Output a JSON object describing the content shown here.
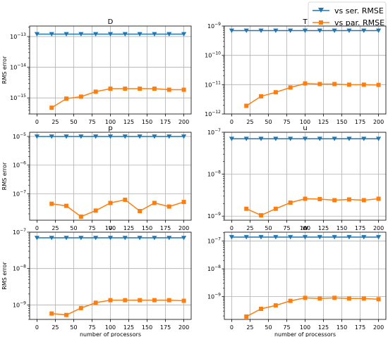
{
  "legend": {
    "placement": "top-right",
    "entries": [
      {
        "label": "vs ser. RMSE",
        "color": "#1f77b4",
        "marker": "triangle-down"
      },
      {
        "label": "vs par. RMSE",
        "color": "#ff7f0e",
        "marker": "square"
      }
    ]
  },
  "chart_data": [
    {
      "type": "line",
      "yscale": "log",
      "grid": true,
      "title": "D",
      "xlabel": "",
      "ylabel": "RMS error",
      "xlim": [
        -10,
        210
      ],
      "ylim": [
        3e-16,
        2.2e-13
      ],
      "xticks": [
        0,
        25,
        50,
        75,
        100,
        125,
        150,
        175,
        200
      ],
      "yticks": [
        {
          "v": 1e-15,
          "base": "10",
          "exp": "−15"
        },
        {
          "v": 1e-14,
          "base": "10",
          "exp": "−14"
        },
        {
          "v": 1e-13,
          "base": "10",
          "exp": "−13"
        }
      ],
      "series": [
        {
          "name": "vs ser. RMSE",
          "color": "#1f77b4",
          "marker": "triangle-down",
          "x": [
            0,
            20,
            40,
            60,
            80,
            100,
            120,
            140,
            160,
            180,
            200
          ],
          "values": [
            1.2e-13,
            1.2e-13,
            1.2e-13,
            1.2e-13,
            1.2e-13,
            1.2e-13,
            1.2e-13,
            1.2e-13,
            1.2e-13,
            1.2e-13,
            1.2e-13
          ]
        },
        {
          "name": "vs par. RMSE",
          "color": "#ff7f0e",
          "marker": "square",
          "x": [
            20,
            40,
            60,
            80,
            100,
            120,
            140,
            160,
            180,
            200
          ],
          "values": [
            4.8e-16,
            9.5e-16,
            1.1e-15,
            1.6e-15,
            2e-15,
            2e-15,
            2e-15,
            2e-15,
            1.85e-15,
            1.85e-15
          ]
        }
      ]
    },
    {
      "type": "line",
      "yscale": "log",
      "grid": true,
      "title": "T",
      "xlabel": "",
      "ylabel": "",
      "xlim": [
        -10,
        210
      ],
      "ylim": [
        1e-12,
        1e-09
      ],
      "xticks": [
        0,
        25,
        50,
        75,
        100,
        125,
        150,
        175,
        200
      ],
      "yticks": [
        {
          "v": 1e-12,
          "base": "10",
          "exp": "−12"
        },
        {
          "v": 1e-11,
          "base": "10",
          "exp": "−11"
        },
        {
          "v": 1e-10,
          "base": "10",
          "exp": "−10"
        },
        {
          "v": 1e-09,
          "base": "10",
          "exp": "−9"
        }
      ],
      "series": [
        {
          "name": "vs ser. RMSE",
          "color": "#1f77b4",
          "marker": "triangle-down",
          "x": [
            0,
            20,
            40,
            60,
            80,
            100,
            120,
            140,
            160,
            180,
            200
          ],
          "values": [
            7e-10,
            7e-10,
            7e-10,
            7e-10,
            7e-10,
            7e-10,
            7e-10,
            7e-10,
            7e-10,
            7e-10,
            7e-10
          ]
        },
        {
          "name": "vs par. RMSE",
          "color": "#ff7f0e",
          "marker": "square",
          "x": [
            20,
            40,
            60,
            80,
            100,
            120,
            140,
            160,
            180,
            200
          ],
          "values": [
            1.9e-12,
            4e-12,
            5.5e-12,
            8e-12,
            1.1e-11,
            1.05e-11,
            1.05e-11,
            1e-11,
            1e-11,
            9.8e-12
          ]
        }
      ]
    },
    {
      "type": "line",
      "yscale": "log",
      "grid": true,
      "title": "p",
      "xlabel": "",
      "ylabel": "RMS error",
      "xlim": [
        -10,
        210
      ],
      "ylim": [
        1.2e-08,
        1.4e-05
      ],
      "xticks": [
        0,
        25,
        50,
        75,
        100,
        125,
        150,
        175,
        200
      ],
      "yticks": [
        {
          "v": 1e-07,
          "base": "10",
          "exp": "−7"
        },
        {
          "v": 1e-06,
          "base": "10",
          "exp": "−6"
        },
        {
          "v": 1e-05,
          "base": "10",
          "exp": "−5"
        }
      ],
      "series": [
        {
          "name": "vs ser. RMSE",
          "color": "#1f77b4",
          "marker": "triangle-down",
          "x": [
            0,
            20,
            40,
            60,
            80,
            100,
            120,
            140,
            160,
            180,
            200
          ],
          "values": [
            1e-05,
            1e-05,
            1e-05,
            1e-05,
            1e-05,
            1e-05,
            1e-05,
            1e-05,
            1e-05,
            1e-05,
            1e-05
          ]
        },
        {
          "name": "vs par. RMSE",
          "color": "#ff7f0e",
          "marker": "square",
          "x": [
            20,
            40,
            60,
            80,
            100,
            120,
            140,
            160,
            180,
            200
          ],
          "values": [
            4.5e-08,
            3.8e-08,
            1.6e-08,
            2.6e-08,
            4.8e-08,
            6.2e-08,
            2.5e-08,
            4.8e-08,
            3.6e-08,
            5.2e-08
          ]
        }
      ]
    },
    {
      "type": "line",
      "yscale": "log",
      "grid": true,
      "title": "u",
      "xlabel": "",
      "ylabel": "",
      "xlim": [
        -10,
        210
      ],
      "ylim": [
        8e-10,
        1e-07
      ],
      "xticks": [
        0,
        25,
        50,
        75,
        100,
        125,
        150,
        175,
        200
      ],
      "yticks": [
        {
          "v": 1e-09,
          "base": "10",
          "exp": "−9"
        },
        {
          "v": 1e-08,
          "base": "10",
          "exp": "−8"
        },
        {
          "v": 1e-07,
          "base": "10",
          "exp": "−7"
        }
      ],
      "series": [
        {
          "name": "vs ser. RMSE",
          "color": "#1f77b4",
          "marker": "triangle-down",
          "x": [
            0,
            20,
            40,
            60,
            80,
            100,
            120,
            140,
            160,
            180,
            200
          ],
          "values": [
            7e-08,
            7e-08,
            7e-08,
            7e-08,
            7e-08,
            7e-08,
            7e-08,
            7e-08,
            7e-08,
            7e-08,
            7e-08
          ]
        },
        {
          "name": "vs par. RMSE",
          "color": "#ff7f0e",
          "marker": "square",
          "x": [
            20,
            40,
            60,
            80,
            100,
            120,
            140,
            160,
            180,
            200
          ],
          "values": [
            1.5e-09,
            1.05e-09,
            1.5e-09,
            2.1e-09,
            2.6e-09,
            2.55e-09,
            2.4e-09,
            2.5e-09,
            2.4e-09,
            2.6e-09
          ]
        }
      ]
    },
    {
      "type": "line",
      "yscale": "log",
      "grid": true,
      "title": "v",
      "xlabel": "number of processors",
      "ylabel": "RMS error",
      "xlim": [
        -10,
        210
      ],
      "ylim": [
        4e-10,
        1e-07
      ],
      "xticks": [
        0,
        25,
        50,
        75,
        100,
        125,
        150,
        175,
        200
      ],
      "yticks": [
        {
          "v": 1e-09,
          "base": "10",
          "exp": "−9"
        },
        {
          "v": 1e-08,
          "base": "10",
          "exp": "−8"
        },
        {
          "v": 1e-07,
          "base": "10",
          "exp": "−7"
        }
      ],
      "series": [
        {
          "name": "vs ser. RMSE",
          "color": "#1f77b4",
          "marker": "triangle-down",
          "x": [
            0,
            20,
            40,
            60,
            80,
            100,
            120,
            140,
            160,
            180,
            200
          ],
          "values": [
            7e-08,
            7e-08,
            7e-08,
            7e-08,
            7e-08,
            7e-08,
            7e-08,
            7e-08,
            7e-08,
            7e-08,
            7e-08
          ]
        },
        {
          "name": "vs par. RMSE",
          "color": "#ff7f0e",
          "marker": "square",
          "x": [
            20,
            40,
            60,
            80,
            100,
            120,
            140,
            160,
            180,
            200
          ],
          "values": [
            5.8e-10,
            5.3e-10,
            8.2e-10,
            1.15e-09,
            1.35e-09,
            1.35e-09,
            1.35e-09,
            1.35e-09,
            1.35e-09,
            1.3e-09
          ]
        }
      ]
    },
    {
      "type": "line",
      "yscale": "log",
      "grid": true,
      "title": "w",
      "xlabel": "number of processors",
      "ylabel": "",
      "xlim": [
        -10,
        210
      ],
      "ylim": [
        1.5e-10,
        2.1e-07
      ],
      "xticks": [
        0,
        25,
        50,
        75,
        100,
        125,
        150,
        175,
        200
      ],
      "yticks": [
        {
          "v": 1e-09,
          "base": "10",
          "exp": "−9"
        },
        {
          "v": 1e-08,
          "base": "10",
          "exp": "−8"
        },
        {
          "v": 1e-07,
          "base": "10",
          "exp": "−7"
        }
      ],
      "series": [
        {
          "name": "vs ser. RMSE",
          "color": "#1f77b4",
          "marker": "triangle-down",
          "x": [
            0,
            20,
            40,
            60,
            80,
            100,
            120,
            140,
            160,
            180,
            200
          ],
          "values": [
            1.4e-07,
            1.4e-07,
            1.4e-07,
            1.4e-07,
            1.4e-07,
            1.4e-07,
            1.4e-07,
            1.4e-07,
            1.4e-07,
            1.4e-07,
            1.4e-07
          ]
        },
        {
          "name": "vs par. RMSE",
          "color": "#ff7f0e",
          "marker": "square",
          "x": [
            20,
            40,
            60,
            80,
            100,
            120,
            140,
            160,
            180,
            200
          ],
          "values": [
            1.9e-10,
            3.6e-10,
            4.8e-10,
            7e-10,
            9e-10,
            8.5e-10,
            9e-10,
            8.5e-10,
            8.5e-10,
            8e-10
          ]
        }
      ]
    }
  ]
}
